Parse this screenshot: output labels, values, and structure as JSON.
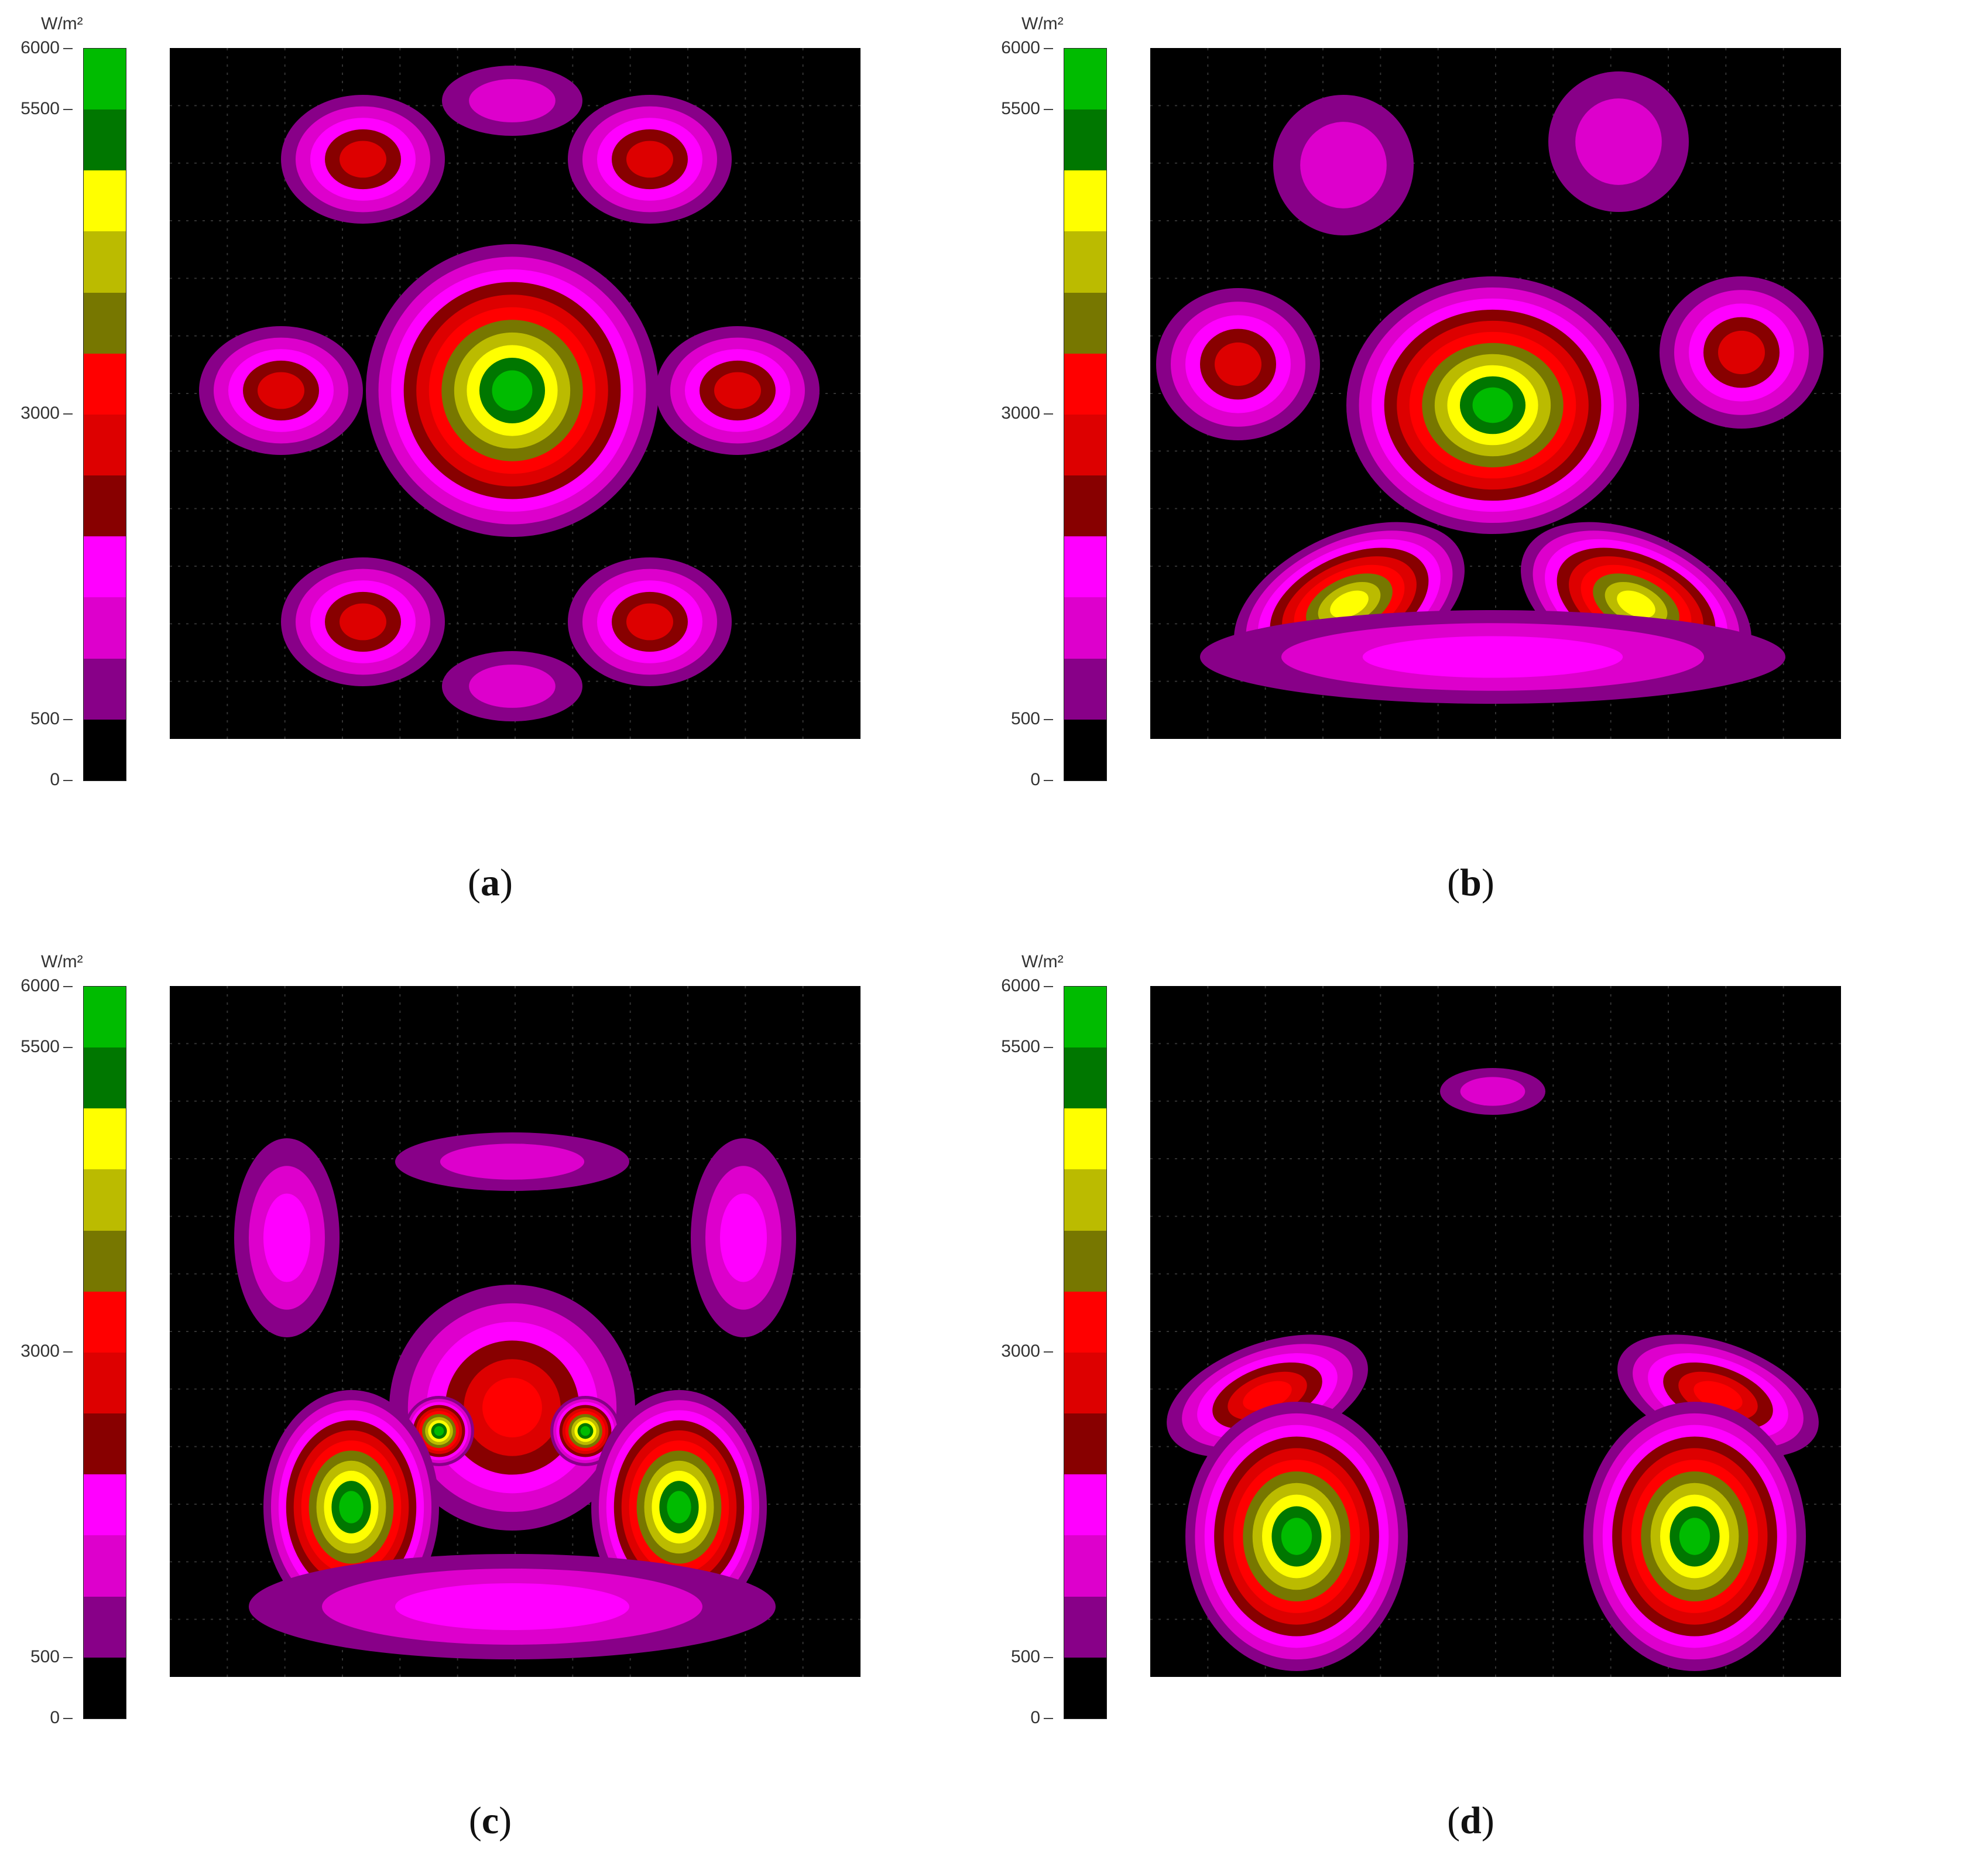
{
  "legend": {
    "unit": "W/m²",
    "ticks": [
      "6000",
      "5500",
      "3000",
      "500",
      "0"
    ],
    "colors": [
      "#00bb00",
      "#007700",
      "#ffff00",
      "#bbbb00",
      "#777700",
      "#ff0000",
      "#dd0000",
      "#880000",
      "#ff00ff",
      "#dd00cc",
      "#880088",
      "#000000"
    ]
  },
  "chart_data": [
    {
      "type": "heatmap",
      "panel_label": "a",
      "unit": "W/m²",
      "scale": [
        0,
        500,
        3000,
        5500,
        6000
      ],
      "pattern": "central disc with ring of eight peripheral spots"
    },
    {
      "type": "heatmap",
      "panel_label": "b",
      "unit": "W/m²",
      "scale": [
        0,
        500,
        3000,
        5500,
        6000
      ],
      "pattern": "central cluster with lower arc of spots"
    },
    {
      "type": "heatmap",
      "panel_label": "c",
      "unit": "W/m²",
      "scale": [
        0,
        500,
        3000,
        5500,
        6000
      ],
      "pattern": "two lobes above lower arc with two green cores"
    },
    {
      "type": "heatmap",
      "panel_label": "d",
      "unit": "W/m²",
      "scale": [
        0,
        500,
        3000,
        5500,
        6000
      ],
      "pattern": "two symmetric lower lobes"
    }
  ],
  "captions": [
    "a",
    "b",
    "c",
    "d"
  ]
}
